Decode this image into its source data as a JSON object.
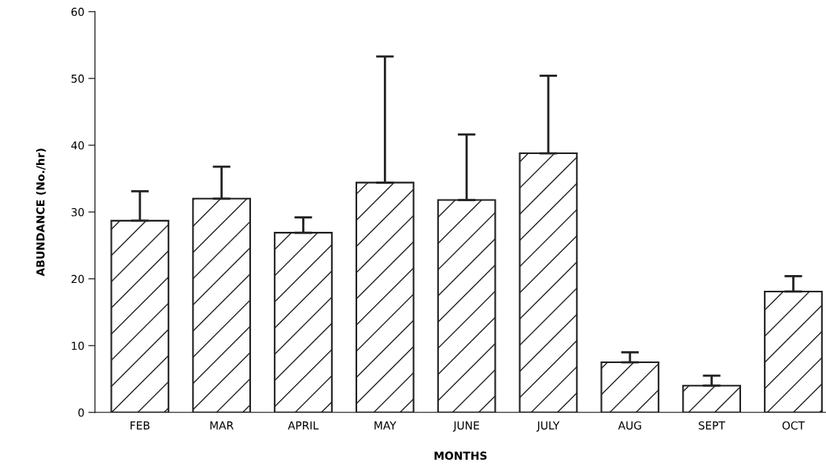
{
  "chart_data": {
    "type": "bar",
    "xlabel": "MONTHS",
    "ylabel": "ABUNDANCE (No./hr)",
    "categories": [
      "FEB",
      "MAR",
      "APRIL",
      "MAY",
      "JUNE",
      "JULY",
      "AUG",
      "SEPT",
      "OCT"
    ],
    "values": [
      28.7,
      32.0,
      26.9,
      34.4,
      31.8,
      38.8,
      7.5,
      4.0,
      18.1
    ],
    "errors": [
      [
        28.7,
        33.1
      ],
      [
        32.0,
        36.8
      ],
      [
        26.9,
        29.2
      ],
      [
        34.4,
        53.3
      ],
      [
        31.8,
        41.6
      ],
      [
        38.8,
        50.4
      ],
      [
        7.5,
        9.0
      ],
      [
        4.0,
        5.5
      ],
      [
        18.1,
        20.4
      ]
    ],
    "color": "#222222",
    "ylim": [
      0,
      60
    ],
    "yticks": [
      0,
      10,
      20,
      30,
      40,
      50,
      60
    ],
    "grid": false,
    "legend": false
  }
}
